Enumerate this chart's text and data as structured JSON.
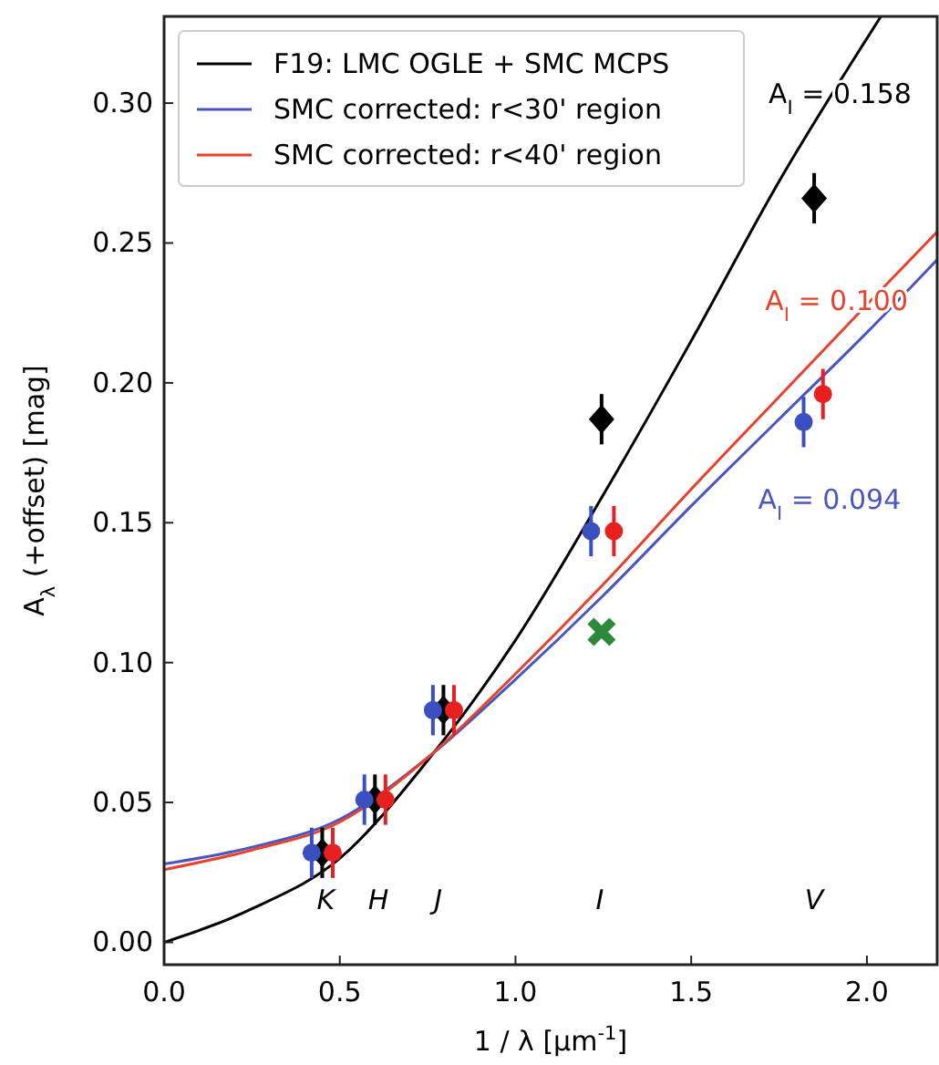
{
  "chart_data": {
    "type": "line",
    "xlabel": "1 / λ [μm$^{-1}$]",
    "ylabel": "A$_{λ}$ (+offset) [mag]",
    "xlim": [
      0,
      2.2
    ],
    "ylim": [
      -0.008,
      0.331
    ],
    "xticks": [
      {
        "value": 0,
        "label": "0.0"
      },
      {
        "value": 0.5,
        "label": "0.5"
      },
      {
        "value": 1,
        "label": "1.0"
      },
      {
        "value": 1.5,
        "label": "1.5"
      },
      {
        "value": 2,
        "label": "2.0"
      }
    ],
    "yticks": [
      {
        "value": 0,
        "label": "0.00"
      },
      {
        "value": 0.05,
        "label": "0.05"
      },
      {
        "value": 0.1,
        "label": "0.10"
      },
      {
        "value": 0.15,
        "label": "0.15"
      },
      {
        "value": 0.2,
        "label": "0.20"
      },
      {
        "value": 0.25,
        "label": "0.25"
      },
      {
        "value": 0.3,
        "label": "0.30"
      }
    ],
    "grid": false,
    "legend": "top left",
    "marker": "none",
    "line_style": "solid",
    "series": [
      {
        "name": "F19: LMC OGLE + SMC MCPS",
        "color": "#000000",
        "x": [
          0,
          0.25,
          0.5,
          0.75,
          1.0,
          1.25,
          1.5,
          1.75,
          2.04
        ],
        "values": [
          0,
          0.012,
          0.03,
          0.065,
          0.108,
          0.16,
          0.215,
          0.272,
          0.331
        ]
      },
      {
        "name": "SMC corrected: r<30' region",
        "color": "#4a55c0",
        "x": [
          0,
          0.25,
          0.5,
          0.75,
          1.0,
          1.25,
          1.5,
          1.75,
          2.0,
          2.2
        ],
        "values": [
          0.028,
          0.034,
          0.044,
          0.066,
          0.094,
          0.124,
          0.156,
          0.187,
          0.218,
          0.244
        ]
      },
      {
        "name": "SMC corrected: r<40' region",
        "color": "#e8412c",
        "x": [
          0,
          0.25,
          0.5,
          0.75,
          1.0,
          1.25,
          1.5,
          1.75,
          2.0,
          2.2
        ],
        "values": [
          0.026,
          0.033,
          0.043,
          0.066,
          0.096,
          0.128,
          0.162,
          0.195,
          0.228,
          0.254
        ]
      },
      {
        "type": "scatter",
        "marker": "diamond",
        "color": "#000000",
        "x": [
          0.45,
          0.6,
          0.795,
          1.245,
          1.85
        ],
        "values": [
          0.032,
          0.051,
          0.083,
          0.187,
          0.266
        ],
        "errors": [
          0.009,
          0.009,
          0.009,
          0.009,
          0.009
        ]
      },
      {
        "type": "scatter",
        "marker": "circle",
        "color": "#3a4fc0",
        "x": [
          0.42,
          0.57,
          0.765,
          1.215,
          1.82
        ],
        "values": [
          0.032,
          0.051,
          0.083,
          0.147,
          0.186
        ],
        "errors": [
          0.009,
          0.009,
          0.009,
          0.009,
          0.009
        ]
      },
      {
        "type": "scatter",
        "marker": "circle",
        "color": "#e82020",
        "x": [
          0.48,
          0.63,
          0.825,
          1.28,
          1.875
        ],
        "values": [
          0.032,
          0.051,
          0.083,
          0.147,
          0.196
        ],
        "errors": [
          0.009,
          0.009,
          0.009,
          0.009,
          0.009
        ]
      },
      {
        "type": "scatter",
        "marker": "cross",
        "color": "#2a8a3a",
        "x": [
          1.245
        ],
        "values": [
          0.111
        ]
      }
    ],
    "annotations": [
      "A$_{I}$ = 0.158",
      "A$_{I}$ = 0.094",
      "A$_{I}$ = 0.100",
      "K",
      "H",
      "J",
      "I",
      "V"
    ]
  }
}
